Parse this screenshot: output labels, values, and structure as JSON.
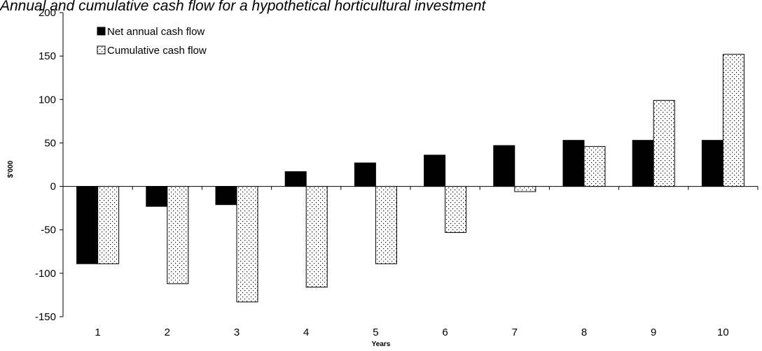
{
  "chart_data": {
    "type": "bar",
    "title": "Annual and cumulative cash flow for a hypothetical horticultural investment",
    "x_label": "Years",
    "y_label": "$'000",
    "categories": [
      "1",
      "2",
      "3",
      "4",
      "5",
      "6",
      "7",
      "8",
      "9",
      "10"
    ],
    "series": [
      {
        "name": "Net annual cash flow",
        "color": "#000000",
        "values": [
          -89,
          -23,
          -21,
          17,
          27,
          36,
          47,
          53,
          53,
          53
        ]
      },
      {
        "name": "Cumulative cash flow",
        "color": "#ffffff",
        "pattern": "dotted",
        "values": [
          -89,
          -112,
          -133,
          -116,
          -89,
          -53,
          -6,
          46,
          99,
          152
        ]
      }
    ],
    "ylim": [
      -150,
      200
    ],
    "yticks": [
      -150,
      -100,
      -50,
      0,
      50,
      100,
      150,
      200
    ],
    "grid": false,
    "legend": "top-left"
  }
}
